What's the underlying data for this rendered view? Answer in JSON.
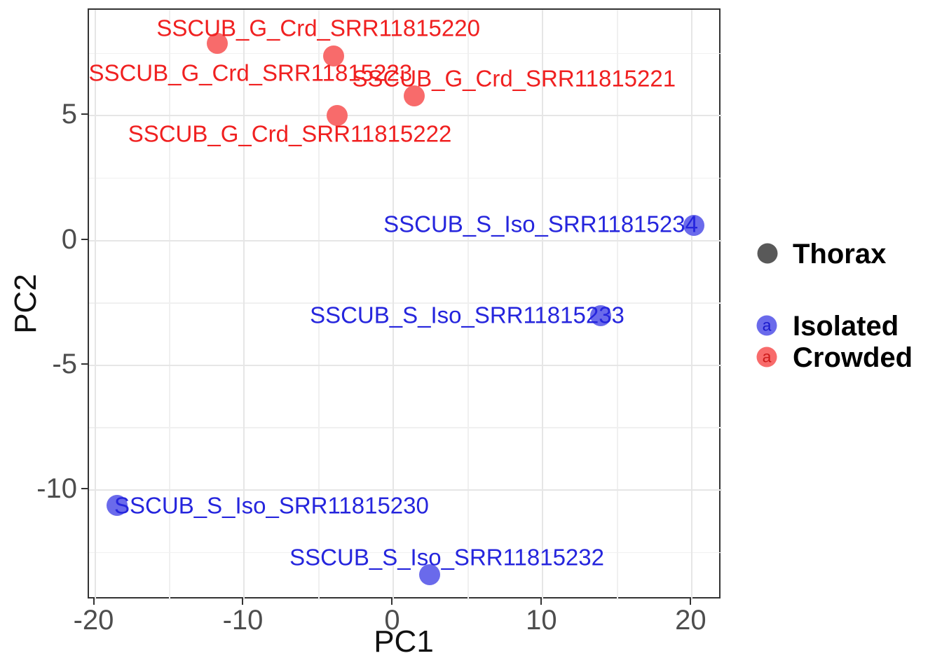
{
  "chart_data": {
    "type": "scatter",
    "title": "",
    "xlabel": "PC1",
    "ylabel": "PC2",
    "xlim": [
      -20.4,
      22.0
    ],
    "ylim": [
      -14.4,
      9.25
    ],
    "x_ticks": [
      -20,
      -10,
      0,
      10,
      20
    ],
    "y_ticks": [
      -10,
      -5,
      0,
      5
    ],
    "x_minor_ticks": [
      -15,
      -5,
      5,
      15
    ],
    "y_minor_ticks": [
      -12.5,
      -7.5,
      -2.5,
      2.5,
      7.5
    ],
    "grid": "major and minor, light gray on white",
    "legend_position": "right",
    "series": [
      {
        "name": "Crowded",
        "point_color": "#f86b6b",
        "text_color": "#f02020",
        "points": [
          {
            "label": "SSCUB_G_Crd_SRR11815220",
            "pc1": -11.8,
            "pc2": 7.9,
            "label_dx": 144,
            "label_dy": -22
          },
          {
            "label": "SSCUB_G_Crd_SRR11815223",
            "pc1": -4.0,
            "pc2": 7.4,
            "label_dx": -119,
            "label_dy": 24
          },
          {
            "label": "SSCUB_G_Crd_SRR11815221",
            "pc1": 1.4,
            "pc2": 5.8,
            "label_dx": 142,
            "label_dy": -25
          },
          {
            "label": "SSCUB_G_Crd_SRR11815222",
            "pc1": -3.8,
            "pc2": 5.0,
            "label_dx": -67,
            "label_dy": 26
          }
        ]
      },
      {
        "name": "Isolated",
        "point_color": "#6a6aeb",
        "text_color": "#2525dd",
        "points": [
          {
            "label": "SSCUB_S_Iso_SRR11815234",
            "pc1": 20.1,
            "pc2": 0.6,
            "label_dx": -218,
            "label_dy": -2
          },
          {
            "label": "SSCUB_S_Iso_SRR11815233",
            "pc1": 13.9,
            "pc2": -3.0,
            "label_dx": -191,
            "label_dy": -1
          },
          {
            "label": "SSCUB_S_Iso_SRR11815230",
            "pc1": -18.5,
            "pc2": -10.6,
            "label_dx": 220,
            "label_dy": 0
          },
          {
            "label": "SSCUB_S_Iso_SRR11815232",
            "pc1": 2.4,
            "pc2": -13.4,
            "label_dx": 25,
            "label_dy": -25
          }
        ]
      }
    ],
    "legend": {
      "key_glyph": "a",
      "size_entry": {
        "label": "Thorax",
        "key_color": "#595959"
      },
      "color_entries": [
        {
          "label": "Isolated",
          "key_color": "#6a6aeb",
          "glyph_color": "#1a1acc"
        },
        {
          "label": "Crowded",
          "key_color": "#f86b6b",
          "glyph_color": "#cc1a1a"
        }
      ]
    }
  }
}
